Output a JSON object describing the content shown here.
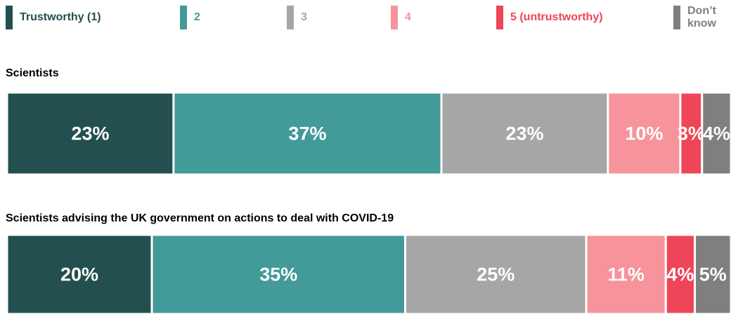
{
  "chart_data": {
    "type": "stacked-bar-horizontal",
    "categories": [
      "Scientists",
      "Scientists advising the UK government on actions to deal with COVID-19"
    ],
    "xlim": [
      0,
      100
    ],
    "legend": "top",
    "series": [
      {
        "name": "Trustworthy (1)",
        "color": "#234f4f",
        "values": [
          23,
          20
        ],
        "value_labels": [
          "23%",
          "20%"
        ]
      },
      {
        "name": "2",
        "color": "#429a99",
        "values": [
          37,
          35
        ],
        "value_labels": [
          "37%",
          "35%"
        ]
      },
      {
        "name": "3",
        "color": "#a6a6a6",
        "values": [
          23,
          25
        ],
        "value_labels": [
          "23%",
          "25%"
        ]
      },
      {
        "name": "4",
        "color": "#f7939a",
        "values": [
          10,
          11
        ],
        "value_labels": [
          "10%",
          "11%"
        ]
      },
      {
        "name": "5 (untrustworthy)",
        "color": "#ef4558",
        "values": [
          3,
          4
        ],
        "value_labels": [
          "3%",
          "4%"
        ]
      },
      {
        "name": "Don’t know",
        "color": "#7f7f7f",
        "values": [
          4,
          5
        ],
        "value_labels": [
          "4%",
          "5%"
        ]
      }
    ]
  }
}
